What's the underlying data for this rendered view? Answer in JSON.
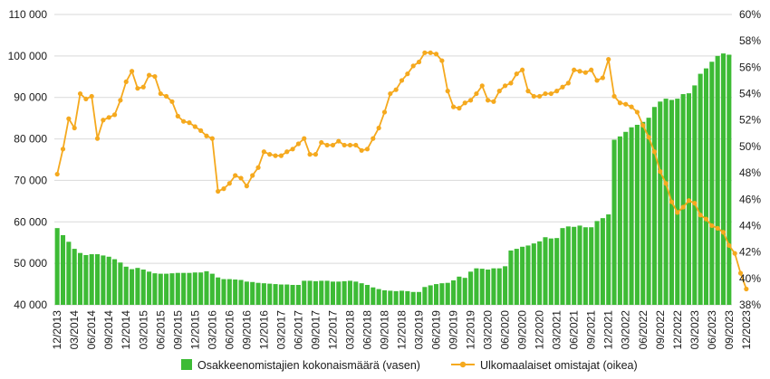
{
  "chart_data": {
    "type": "bar+line",
    "colors": {
      "bars": "#3DBB35",
      "line": "#F5A91E",
      "grid": "#D9D9D9"
    },
    "left_axis": {
      "range": [
        40000,
        110000
      ],
      "ticks": [
        "40 000",
        "50 000",
        "60 000",
        "70 000",
        "80 000",
        "90 000",
        "100 000",
        "110 000"
      ]
    },
    "right_axis": {
      "range": [
        38,
        60
      ],
      "ticks": [
        "38%",
        "40%",
        "42%",
        "44%",
        "46%",
        "48%",
        "50%",
        "52%",
        "54%",
        "56%",
        "58%",
        "60%"
      ]
    },
    "x_tick_labels": [
      "12/2013",
      "03/2014",
      "06/2014",
      "09/2014",
      "12/2014",
      "03/2015",
      "06/2015",
      "09/2015",
      "12/2015",
      "03/2016",
      "06/2016",
      "09/2016",
      "12/2016",
      "03/2017",
      "06/2017",
      "09/2017",
      "12/2017",
      "03/2018",
      "06/2018",
      "09/2018",
      "12/2018",
      "03/2019",
      "06/2019",
      "09/2019",
      "12/2019",
      "03/2020",
      "06/2020",
      "09/2020",
      "12/2020",
      "03/2021",
      "06/2021",
      "09/2021",
      "12/2021",
      "03/2022",
      "06/2022",
      "09/2022",
      "12/2022",
      "03/2023",
      "06/2023",
      "09/2023",
      "12/2023"
    ],
    "series": [
      {
        "name": "Osakkeenomistajien kokonaismäärä (vasen)",
        "kind": "bar",
        "axis": "left",
        "values": [
          58500,
          56800,
          55200,
          53500,
          52500,
          52000,
          52200,
          52200,
          51900,
          51600,
          51000,
          50200,
          49200,
          48600,
          48900,
          48500,
          48000,
          47600,
          47500,
          47500,
          47600,
          47700,
          47700,
          47700,
          47800,
          47800,
          48100,
          47500,
          46600,
          46200,
          46200,
          46100,
          46000,
          45600,
          45500,
          45300,
          45200,
          45100,
          45000,
          44900,
          44900,
          44800,
          44800,
          45800,
          45800,
          45700,
          45800,
          45800,
          45600,
          45600,
          45700,
          45800,
          45600,
          45200,
          44800,
          44200,
          43800,
          43500,
          43400,
          43300,
          43400,
          43300,
          43100,
          43100,
          44300,
          44700,
          45000,
          45200,
          45300,
          45900,
          46800,
          46500,
          48000,
          48800,
          48700,
          48500,
          48800,
          48800,
          49300,
          53100,
          53500,
          54000,
          54300,
          54800,
          55300,
          56300,
          56000,
          56100,
          58500,
          58900,
          58800,
          59100,
          58700,
          58700,
          60200,
          60900,
          61800,
          79800,
          80600,
          81700,
          82800,
          83400,
          84100,
          85100,
          87700,
          89000,
          89700,
          89400,
          89700,
          90800,
          91000,
          92900,
          95700,
          97000,
          98600,
          100000,
          100600,
          100300
        ]
      },
      {
        "name": "Ulkomaalaiset omistajat (oikea)",
        "kind": "line",
        "axis": "right",
        "values": [
          47.9,
          49.8,
          52.1,
          51.4,
          54.0,
          53.6,
          53.8,
          50.6,
          52.0,
          52.2,
          52.4,
          53.5,
          54.9,
          55.7,
          54.4,
          54.5,
          55.4,
          55.3,
          54.0,
          53.8,
          53.4,
          52.3,
          51.9,
          51.8,
          51.5,
          51.2,
          50.8,
          50.6,
          46.6,
          46.8,
          47.2,
          47.8,
          47.6,
          47.0,
          47.8,
          48.4,
          49.6,
          49.4,
          49.3,
          49.3,
          49.6,
          49.8,
          50.2,
          50.6,
          49.4,
          49.4,
          50.3,
          50.1,
          50.1,
          50.4,
          50.1,
          50.1,
          50.1,
          49.7,
          49.8,
          50.6,
          51.4,
          52.6,
          54.0,
          54.3,
          55.0,
          55.5,
          56.1,
          56.4,
          57.1,
          57.1,
          57.0,
          56.5,
          54.2,
          53.0,
          52.9,
          53.3,
          53.5,
          54.0,
          54.6,
          53.5,
          53.4,
          54.2,
          54.6,
          54.8,
          55.5,
          55.8,
          54.2,
          53.8,
          53.8,
          54.0,
          54.0,
          54.2,
          54.5,
          54.8,
          55.8,
          55.7,
          55.6,
          55.8,
          55.0,
          55.2,
          56.6,
          53.8,
          53.3,
          53.2,
          53.0,
          52.6,
          51.6,
          50.7,
          49.6,
          48.1,
          47.2,
          45.8,
          45.0,
          45.4,
          45.9,
          45.7,
          44.8,
          44.5,
          44.0,
          43.8,
          43.5,
          42.5,
          41.9,
          40.4,
          39.2
        ]
      }
    ]
  }
}
